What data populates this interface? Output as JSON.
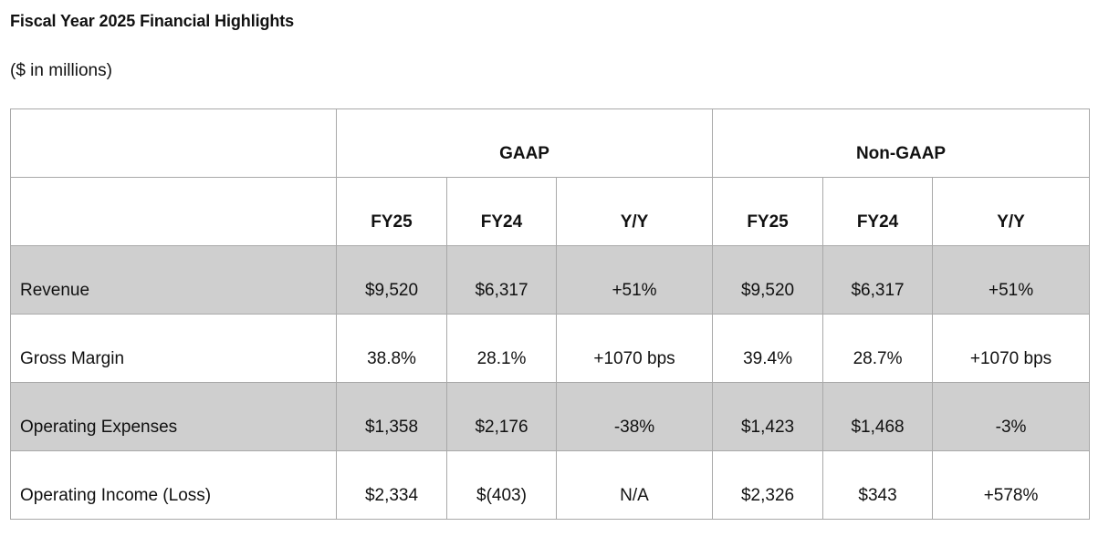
{
  "title": "Fiscal Year 2025 Financial Highlights",
  "subtitle": "($ in millions)",
  "table": {
    "group_headers": [
      "GAAP",
      "Non-GAAP"
    ],
    "sub_headers": [
      "FY25",
      "FY24",
      "Y/Y",
      "FY25",
      "FY24",
      "Y/Y"
    ],
    "rows": [
      {
        "label": "Revenue",
        "values": [
          "$9,520",
          "$6,317",
          "+51%",
          "$9,520",
          "$6,317",
          "+51%"
        ],
        "shaded": true
      },
      {
        "label": "Gross Margin",
        "values": [
          "38.8%",
          "28.1%",
          "+1070 bps",
          "39.4%",
          "28.7%",
          "+1070 bps"
        ],
        "shaded": false
      },
      {
        "label": "Operating Expenses",
        "values": [
          "$1,358",
          "$2,176",
          "-38%",
          "$1,423",
          "$1,468",
          "-3%"
        ],
        "shaded": true
      },
      {
        "label": "Operating Income (Loss)",
        "values": [
          "$2,334",
          "$(403)",
          "N/A",
          "$2,326",
          "$343",
          "+578%"
        ],
        "shaded": false
      }
    ]
  },
  "colors": {
    "shade": "#cfcfcf",
    "border": "#a9a9a9"
  }
}
